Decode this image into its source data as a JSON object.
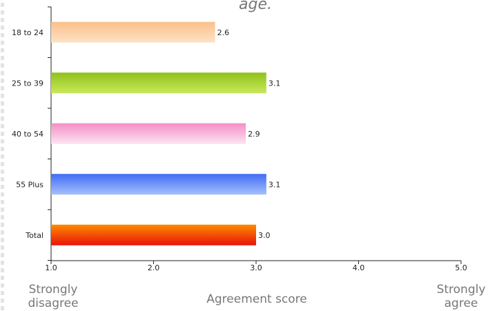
{
  "chart_data": {
    "type": "bar",
    "orientation": "horizontal",
    "title": "age.",
    "categories": [
      "18 to 24",
      "25 to 39",
      "40 to 54",
      "55 Plus",
      "Total"
    ],
    "values": [
      2.6,
      3.1,
      2.9,
      3.1,
      3.0
    ],
    "value_labels": [
      "2.6",
      "3.1",
      "2.9",
      "3.1",
      "3.0"
    ],
    "xlabel": "Agreement score",
    "xlim": [
      1.0,
      5.0
    ],
    "xticks": [
      1.0,
      2.0,
      3.0,
      4.0,
      5.0
    ],
    "xtick_labels": [
      "1.0",
      "2.0",
      "3.0",
      "4.0",
      "5.0"
    ],
    "x_start_label": [
      "Strongly",
      "disagree"
    ],
    "x_end_label": [
      "Strongly",
      "agree"
    ],
    "grid": false,
    "legend": "none",
    "bar_gradients": [
      [
        "#fbbf8a",
        "#fde2c7"
      ],
      [
        "#8fc21a",
        "#c8e85a"
      ],
      [
        "#f48fc6",
        "#fde3f1"
      ],
      [
        "#3f6df5",
        "#a6c0fb"
      ],
      [
        "#ff8a00",
        "#e8140c"
      ]
    ]
  }
}
